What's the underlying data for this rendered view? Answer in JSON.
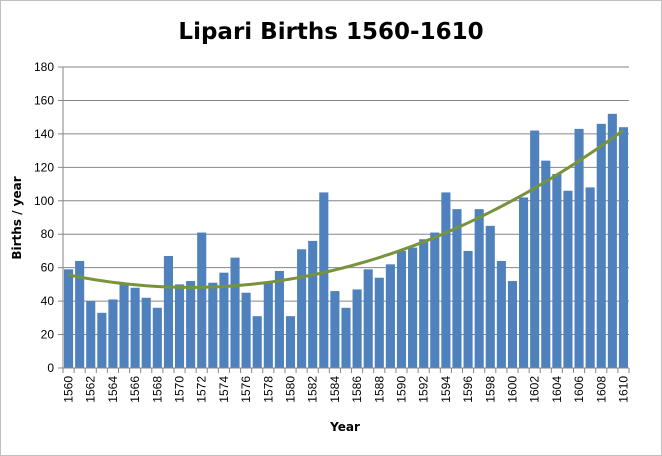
{
  "chart_data": {
    "type": "bar",
    "title": "Lipari Births 1560-1610",
    "xlabel": "Year",
    "ylabel": "Births / year",
    "ylim": [
      0,
      180
    ],
    "yticks": [
      0,
      20,
      40,
      60,
      80,
      100,
      120,
      140,
      160,
      180
    ],
    "grid": true,
    "legend": "none",
    "bar_color": "#4f81bd",
    "trend_color": "#77933c",
    "trendline": "polynomial",
    "x_tick_labels": [
      "1560",
      "1562",
      "1564",
      "1566",
      "1568",
      "1570",
      "1572",
      "1574",
      "1576",
      "1578",
      "1580",
      "1582",
      "1584",
      "1586",
      "1588",
      "1590",
      "1592",
      "1594",
      "1596",
      "1598",
      "1600",
      "1602",
      "1604",
      "1606",
      "1608",
      "1610"
    ],
    "x": [
      1560,
      1561,
      1562,
      1563,
      1564,
      1565,
      1566,
      1567,
      1568,
      1569,
      1570,
      1571,
      1572,
      1573,
      1574,
      1575,
      1576,
      1577,
      1578,
      1579,
      1580,
      1581,
      1582,
      1583,
      1584,
      1585,
      1586,
      1587,
      1588,
      1589,
      1590,
      1591,
      1592,
      1593,
      1594,
      1595,
      1596,
      1597,
      1598,
      1599,
      1600,
      1601,
      1602,
      1603,
      1604,
      1605,
      1606,
      1607,
      1608,
      1609,
      1610
    ],
    "values": [
      59,
      64,
      40,
      33,
      41,
      51,
      48,
      42,
      36,
      67,
      50,
      52,
      81,
      51,
      57,
      66,
      45,
      31,
      51,
      58,
      31,
      71,
      76,
      105,
      46,
      36,
      47,
      59,
      54,
      62,
      70,
      72,
      77,
      81,
      105,
      95,
      70,
      95,
      85,
      64,
      52,
      102,
      142,
      124,
      116,
      106,
      143,
      108,
      146,
      152,
      144
    ]
  }
}
